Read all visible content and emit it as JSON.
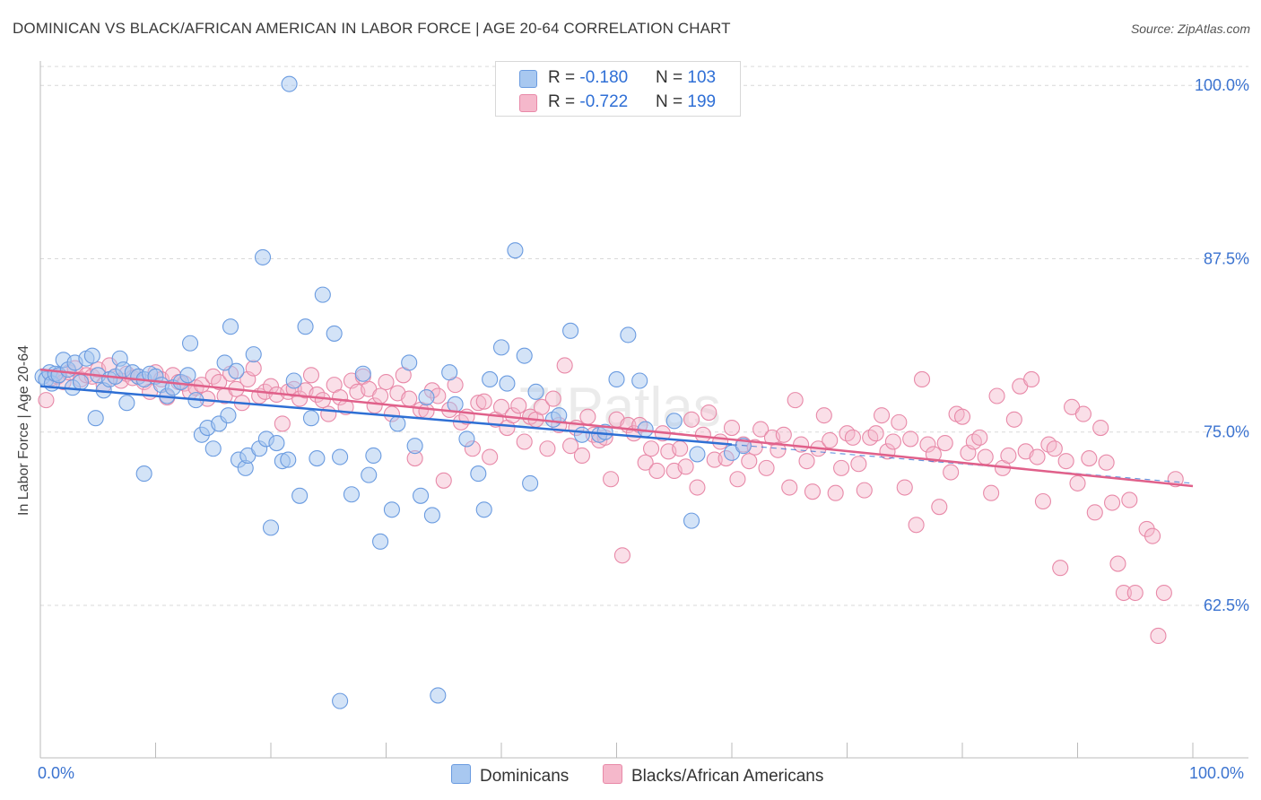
{
  "title": "DOMINICAN VS BLACK/AFRICAN AMERICAN IN LABOR FORCE | AGE 20-64 CORRELATION CHART",
  "source": "Source: ZipAtlas.com",
  "legend": {
    "row1": {
      "r_label": "R = ",
      "r_value": "-0.180",
      "n_label": "N = ",
      "n_value": "103"
    },
    "row2": {
      "r_label": "R = ",
      "r_value": "-0.722",
      "n_label": "N = ",
      "n_value": "199"
    }
  },
  "bottom_legend": {
    "series1": "Dominicans",
    "series2": "Blacks/African Americans"
  },
  "x_ticks": {
    "left": "0.0%",
    "right": "100.0%"
  },
  "colors": {
    "blue_fill": "#a8c8f0",
    "blue_stroke": "#6a9be0",
    "blue_line": "#2e6fd4",
    "pink_fill": "#f5b8cb",
    "pink_stroke": "#e889a8",
    "pink_line": "#e0608a",
    "tick_text": "#3b73d0",
    "grid": "#d9d9d9"
  },
  "chart_data": {
    "type": "scatter",
    "title": "DOMINICAN VS BLACK/AFRICAN AMERICAN IN LABOR FORCE | AGE 20-64 CORRELATION CHART",
    "xlabel": "",
    "ylabel": "In Labor Force | Age 20-64",
    "xlim": [
      0,
      100
    ],
    "ylim": [
      51.5,
      101.5
    ],
    "y_ticks": [
      {
        "value": 62.5,
        "label": "62.5%"
      },
      {
        "value": 75.0,
        "label": "75.0%"
      },
      {
        "value": 87.5,
        "label": "87.5%"
      },
      {
        "value": 100.0,
        "label": "100.0%"
      }
    ],
    "grid": "horizontal dashed",
    "series": [
      {
        "name": "Dominicans",
        "trend": {
          "x0": 0,
          "y0": 78.3,
          "x1": 60,
          "y1": 74.1,
          "dashed_to_x": 100,
          "dashed_to_y": 71.3
        },
        "points": [
          [
            0.2,
            79.0
          ],
          [
            0.5,
            78.8
          ],
          [
            0.8,
            79.3
          ],
          [
            1.0,
            78.5
          ],
          [
            1.3,
            79.2
          ],
          [
            1.6,
            79.1
          ],
          [
            2.0,
            80.2
          ],
          [
            2.4,
            79.5
          ],
          [
            2.8,
            78.2
          ],
          [
            3.0,
            80.0
          ],
          [
            3.5,
            78.6
          ],
          [
            4.0,
            80.3
          ],
          [
            4.5,
            80.5
          ],
          [
            5.0,
            79.1
          ],
          [
            5.5,
            78.0
          ],
          [
            6.0,
            78.8
          ],
          [
            6.5,
            79.0
          ],
          [
            6.9,
            80.3
          ],
          [
            7.2,
            79.5
          ],
          [
            7.5,
            77.1
          ],
          [
            8.0,
            79.3
          ],
          [
            8.5,
            79.0
          ],
          [
            9.0,
            78.8
          ],
          [
            9.5,
            79.2
          ],
          [
            10.0,
            79.0
          ],
          [
            10.5,
            78.4
          ],
          [
            11.0,
            77.6
          ],
          [
            11.5,
            78.2
          ],
          [
            12.2,
            78.6
          ],
          [
            12.8,
            79.1
          ],
          [
            13.0,
            81.4
          ],
          [
            13.5,
            77.3
          ],
          [
            14.0,
            74.8
          ],
          [
            14.5,
            75.3
          ],
          [
            15.0,
            73.8
          ],
          [
            15.5,
            75.6
          ],
          [
            16.0,
            80.0
          ],
          [
            16.5,
            82.6
          ],
          [
            17.0,
            79.4
          ],
          [
            17.2,
            73.0
          ],
          [
            17.8,
            72.4
          ],
          [
            18.0,
            73.3
          ],
          [
            18.5,
            80.6
          ],
          [
            19.0,
            73.8
          ],
          [
            19.3,
            87.6
          ],
          [
            19.6,
            74.5
          ],
          [
            20.0,
            68.1
          ],
          [
            21.0,
            72.9
          ],
          [
            21.5,
            73.0
          ],
          [
            22.0,
            78.7
          ],
          [
            21.6,
            100.1
          ],
          [
            22.5,
            70.4
          ],
          [
            23.0,
            82.6
          ],
          [
            23.5,
            76.0
          ],
          [
            24.0,
            73.1
          ],
          [
            24.5,
            84.9
          ],
          [
            25.5,
            82.1
          ],
          [
            26.0,
            73.2
          ],
          [
            27.0,
            70.5
          ],
          [
            28.0,
            79.2
          ],
          [
            28.5,
            71.9
          ],
          [
            28.9,
            73.3
          ],
          [
            29.5,
            67.1
          ],
          [
            30.5,
            69.4
          ],
          [
            31.0,
            75.6
          ],
          [
            32.0,
            80.0
          ],
          [
            32.5,
            74.0
          ],
          [
            33.0,
            70.4
          ],
          [
            33.5,
            77.5
          ],
          [
            34.0,
            69.0
          ],
          [
            34.5,
            56.0
          ],
          [
            35.5,
            79.3
          ],
          [
            36.0,
            77.0
          ],
          [
            37.0,
            74.5
          ],
          [
            38.0,
            72.0
          ],
          [
            38.5,
            69.4
          ],
          [
            39.0,
            78.8
          ],
          [
            40.0,
            81.1
          ],
          [
            40.5,
            78.5
          ],
          [
            41.2,
            88.1
          ],
          [
            42.0,
            80.5
          ],
          [
            42.5,
            71.3
          ],
          [
            43.0,
            77.9
          ],
          [
            44.5,
            75.9
          ],
          [
            45.0,
            76.2
          ],
          [
            46.0,
            82.3
          ],
          [
            47.0,
            74.8
          ],
          [
            48.5,
            74.8
          ],
          [
            49.0,
            75.0
          ],
          [
            50.0,
            78.8
          ],
          [
            51.0,
            82.0
          ],
          [
            52.0,
            78.7
          ],
          [
            52.5,
            75.2
          ],
          [
            55.0,
            75.8
          ],
          [
            56.5,
            68.6
          ],
          [
            57.0,
            73.4
          ],
          [
            60.0,
            73.5
          ],
          [
            61.0,
            74.0
          ],
          [
            26.0,
            55.6
          ],
          [
            20.5,
            74.2
          ],
          [
            9.0,
            72.0
          ],
          [
            16.3,
            76.2
          ],
          [
            4.8,
            76.0
          ]
        ]
      },
      {
        "name": "Blacks/African Americans",
        "trend": {
          "x0": 0,
          "y0": 79.5,
          "x1": 100,
          "y1": 71.1
        },
        "points": [
          [
            0.5,
            77.3
          ],
          [
            1.0,
            78.9
          ],
          [
            1.5,
            79.0
          ],
          [
            2.0,
            78.6
          ],
          [
            2.5,
            79.3
          ],
          [
            3.0,
            79.6
          ],
          [
            3.5,
            78.8
          ],
          [
            4.0,
            79.1
          ],
          [
            4.5,
            79.0
          ],
          [
            5.0,
            79.5
          ],
          [
            5.5,
            78.4
          ],
          [
            6.0,
            79.8
          ],
          [
            6.5,
            79.0
          ],
          [
            7.0,
            78.7
          ],
          [
            7.5,
            79.2
          ],
          [
            8.0,
            78.9
          ],
          [
            8.5,
            79.0
          ],
          [
            9.0,
            78.6
          ],
          [
            9.5,
            77.9
          ],
          [
            10.0,
            79.3
          ],
          [
            10.5,
            78.8
          ],
          [
            11.0,
            77.5
          ],
          [
            11.5,
            79.1
          ],
          [
            12.0,
            78.6
          ],
          [
            12.5,
            78.5
          ],
          [
            13.0,
            77.9
          ],
          [
            13.5,
            78.2
          ],
          [
            14.0,
            78.4
          ],
          [
            14.5,
            77.4
          ],
          [
            15.0,
            79.0
          ],
          [
            15.5,
            78.6
          ],
          [
            16.0,
            77.6
          ],
          [
            16.5,
            79.2
          ],
          [
            17.0,
            78.1
          ],
          [
            17.5,
            77.1
          ],
          [
            18.0,
            78.8
          ],
          [
            18.5,
            79.6
          ],
          [
            19.0,
            77.6
          ],
          [
            19.5,
            77.9
          ],
          [
            20.0,
            78.3
          ],
          [
            20.5,
            77.7
          ],
          [
            21.0,
            75.6
          ],
          [
            21.5,
            77.9
          ],
          [
            22.0,
            78.1
          ],
          [
            22.5,
            77.4
          ],
          [
            23.0,
            78.0
          ],
          [
            23.5,
            79.1
          ],
          [
            24.0,
            77.7
          ],
          [
            24.5,
            77.3
          ],
          [
            25.0,
            76.3
          ],
          [
            25.5,
            78.4
          ],
          [
            26.0,
            77.5
          ],
          [
            26.5,
            76.8
          ],
          [
            27.0,
            78.7
          ],
          [
            27.5,
            77.9
          ],
          [
            28.0,
            79.0
          ],
          [
            28.5,
            78.1
          ],
          [
            29.0,
            76.9
          ],
          [
            29.5,
            77.6
          ],
          [
            30.0,
            78.6
          ],
          [
            30.5,
            76.3
          ],
          [
            31.0,
            77.8
          ],
          [
            31.5,
            79.1
          ],
          [
            32.0,
            77.4
          ],
          [
            32.5,
            73.1
          ],
          [
            33.0,
            76.6
          ],
          [
            33.5,
            76.5
          ],
          [
            34.0,
            78.0
          ],
          [
            34.5,
            77.6
          ],
          [
            35.0,
            71.5
          ],
          [
            35.5,
            76.6
          ],
          [
            36.0,
            78.4
          ],
          [
            36.5,
            75.7
          ],
          [
            37.0,
            76.1
          ],
          [
            37.5,
            73.8
          ],
          [
            38.0,
            77.1
          ],
          [
            38.5,
            77.2
          ],
          [
            39.0,
            73.2
          ],
          [
            39.5,
            75.9
          ],
          [
            40.0,
            76.8
          ],
          [
            40.5,
            75.3
          ],
          [
            41.0,
            76.2
          ],
          [
            41.5,
            76.9
          ],
          [
            42.0,
            74.3
          ],
          [
            42.5,
            76.1
          ],
          [
            43.0,
            75.9
          ],
          [
            43.5,
            76.8
          ],
          [
            44.0,
            73.8
          ],
          [
            44.5,
            77.4
          ],
          [
            45.0,
            75.5
          ],
          [
            45.5,
            79.8
          ],
          [
            46.0,
            74.0
          ],
          [
            46.5,
            75.3
          ],
          [
            47.0,
            73.3
          ],
          [
            47.5,
            76.1
          ],
          [
            48.0,
            74.8
          ],
          [
            48.5,
            74.4
          ],
          [
            49.0,
            74.6
          ],
          [
            49.5,
            71.6
          ],
          [
            50.0,
            75.9
          ],
          [
            50.5,
            66.1
          ],
          [
            51.0,
            75.5
          ],
          [
            51.5,
            74.9
          ],
          [
            52.0,
            75.5
          ],
          [
            52.5,
            72.8
          ],
          [
            53.0,
            73.8
          ],
          [
            53.5,
            72.2
          ],
          [
            54.0,
            74.9
          ],
          [
            54.5,
            73.6
          ],
          [
            55.0,
            72.2
          ],
          [
            55.5,
            73.8
          ],
          [
            56.0,
            72.5
          ],
          [
            56.5,
            75.9
          ],
          [
            57.0,
            71.0
          ],
          [
            57.5,
            74.8
          ],
          [
            58.0,
            76.4
          ],
          [
            58.5,
            73.0
          ],
          [
            59.0,
            74.3
          ],
          [
            59.5,
            73.1
          ],
          [
            60.0,
            75.3
          ],
          [
            60.5,
            71.6
          ],
          [
            61.0,
            74.1
          ],
          [
            61.5,
            72.9
          ],
          [
            62.0,
            73.9
          ],
          [
            62.5,
            75.2
          ],
          [
            63.0,
            72.4
          ],
          [
            63.5,
            74.6
          ],
          [
            64.0,
            73.7
          ],
          [
            64.5,
            74.8
          ],
          [
            65.0,
            71.0
          ],
          [
            65.5,
            77.3
          ],
          [
            66.0,
            74.1
          ],
          [
            66.5,
            72.9
          ],
          [
            67.0,
            70.7
          ],
          [
            67.5,
            73.8
          ],
          [
            68.0,
            76.2
          ],
          [
            68.5,
            74.4
          ],
          [
            69.0,
            70.6
          ],
          [
            69.5,
            72.4
          ],
          [
            70.0,
            74.9
          ],
          [
            70.5,
            74.6
          ],
          [
            71.0,
            72.7
          ],
          [
            71.5,
            70.8
          ],
          [
            72.0,
            74.6
          ],
          [
            72.5,
            74.9
          ],
          [
            73.0,
            76.2
          ],
          [
            73.5,
            73.6
          ],
          [
            74.0,
            74.3
          ],
          [
            74.5,
            75.7
          ],
          [
            75.0,
            71.0
          ],
          [
            75.5,
            74.5
          ],
          [
            76.0,
            68.3
          ],
          [
            76.5,
            78.8
          ],
          [
            77.0,
            74.1
          ],
          [
            77.5,
            73.4
          ],
          [
            78.0,
            69.6
          ],
          [
            78.5,
            74.2
          ],
          [
            79.0,
            72.1
          ],
          [
            79.5,
            76.3
          ],
          [
            80.0,
            76.1
          ],
          [
            80.5,
            73.5
          ],
          [
            81.0,
            74.3
          ],
          [
            81.5,
            74.6
          ],
          [
            82.0,
            73.2
          ],
          [
            82.5,
            70.6
          ],
          [
            83.0,
            77.6
          ],
          [
            83.5,
            72.4
          ],
          [
            84.0,
            73.3
          ],
          [
            84.5,
            75.9
          ],
          [
            85.0,
            78.3
          ],
          [
            85.5,
            73.6
          ],
          [
            86.0,
            78.8
          ],
          [
            86.5,
            73.2
          ],
          [
            87.0,
            70.0
          ],
          [
            87.5,
            74.1
          ],
          [
            88.0,
            73.8
          ],
          [
            88.5,
            65.2
          ],
          [
            89.0,
            72.9
          ],
          [
            89.5,
            76.8
          ],
          [
            90.0,
            71.3
          ],
          [
            90.5,
            76.3
          ],
          [
            91.0,
            73.1
          ],
          [
            91.5,
            69.2
          ],
          [
            92.0,
            75.3
          ],
          [
            92.5,
            72.8
          ],
          [
            93.0,
            69.9
          ],
          [
            93.5,
            65.5
          ],
          [
            94.0,
            63.4
          ],
          [
            94.5,
            70.1
          ],
          [
            95.0,
            63.4
          ],
          [
            96.0,
            68.0
          ],
          [
            96.5,
            67.5
          ],
          [
            97.0,
            60.3
          ],
          [
            97.5,
            63.4
          ],
          [
            98.5,
            71.6
          ]
        ]
      }
    ]
  }
}
